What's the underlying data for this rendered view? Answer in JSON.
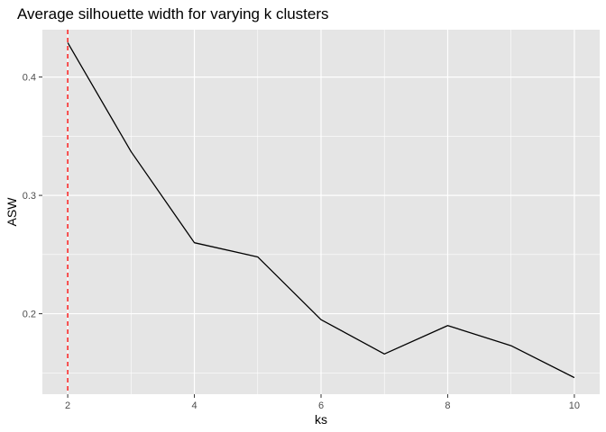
{
  "chart_data": {
    "type": "line",
    "title": "Average silhouette width for varying k clusters",
    "xlabel": "ks",
    "ylabel": "ASW",
    "x": [
      2,
      3,
      4,
      5,
      6,
      7,
      8,
      9,
      10
    ],
    "series": [
      {
        "values": [
          0.429,
          0.337,
          0.26,
          0.248,
          0.195,
          0.166,
          0.19,
          0.173,
          0.146
        ],
        "color": "#000000"
      }
    ],
    "xlim": [
      1.6,
      10.4
    ],
    "ylim": [
      0.132,
      0.44
    ],
    "x_ticks": [
      2,
      4,
      6,
      8,
      10
    ],
    "x_minor_ticks": [
      3,
      5,
      7,
      9
    ],
    "y_ticks": [
      0.2,
      0.3,
      0.4
    ],
    "y_minor_ticks": [
      0.15,
      0.25,
      0.35
    ],
    "x_tick_labels": [
      "2",
      "4",
      "6",
      "8",
      "10"
    ],
    "y_tick_labels": [
      "0.2",
      "0.3",
      "0.4"
    ],
    "reference_line": {
      "orientation": "vertical",
      "x": 2,
      "color": "#ff0000",
      "style": "dashed"
    },
    "grid": true,
    "legend": "none",
    "panel_background": "#e5e5e5",
    "grid_color": "#ffffff"
  }
}
